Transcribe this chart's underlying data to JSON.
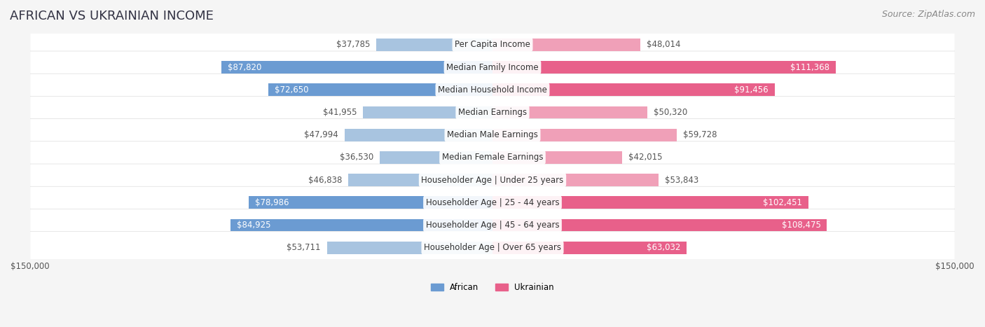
{
  "title": "AFRICAN VS UKRAINIAN INCOME",
  "source": "Source: ZipAtlas.com",
  "categories": [
    "Per Capita Income",
    "Median Family Income",
    "Median Household Income",
    "Median Earnings",
    "Median Male Earnings",
    "Median Female Earnings",
    "Householder Age | Under 25 years",
    "Householder Age | 25 - 44 years",
    "Householder Age | 45 - 64 years",
    "Householder Age | Over 65 years"
  ],
  "african_values": [
    37785,
    87820,
    72650,
    41955,
    47994,
    36530,
    46838,
    78986,
    84925,
    53711
  ],
  "ukrainian_values": [
    48014,
    111368,
    91456,
    50320,
    59728,
    42015,
    53843,
    102451,
    108475,
    63032
  ],
  "african_labels": [
    "$37,785",
    "$87,820",
    "$72,650",
    "$41,955",
    "$47,994",
    "$36,530",
    "$46,838",
    "$78,986",
    "$84,925",
    "$53,711"
  ],
  "ukrainian_labels": [
    "$48,014",
    "$111,368",
    "$91,456",
    "$50,320",
    "$59,728",
    "$42,015",
    "$53,843",
    "$102,451",
    "$108,475",
    "$63,032"
  ],
  "african_color_dark": "#6b9bd2",
  "african_color_light": "#a8c4e0",
  "ukrainian_color_dark": "#e8608a",
  "ukrainian_color_light": "#f0a0b8",
  "background_color": "#f5f5f5",
  "row_bg_color": "#ffffff",
  "max_value": 150000,
  "legend_african": "African",
  "legend_ukrainian": "Ukrainian",
  "title_fontsize": 13,
  "source_fontsize": 9,
  "label_fontsize": 8.5,
  "category_fontsize": 8.5,
  "axis_label_fontsize": 8.5
}
